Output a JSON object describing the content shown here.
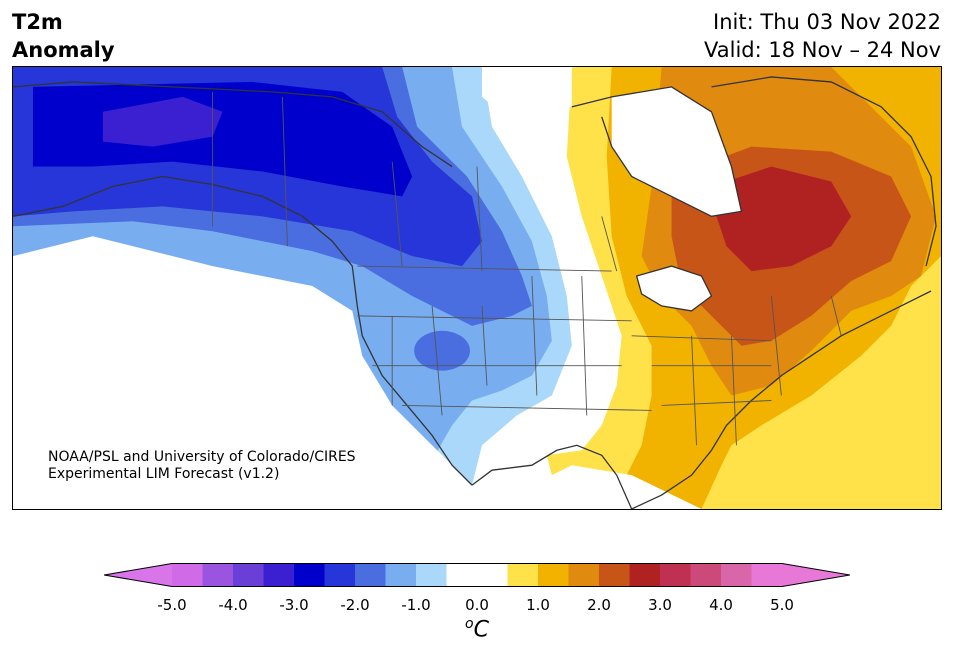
{
  "title_left": {
    "line1": "T2m",
    "line2": "Anomaly"
  },
  "title_right": {
    "init": "Init: Thu 03 Nov 2022",
    "valid": "Valid: 18 Nov – 24 Nov"
  },
  "credit": {
    "line1": "NOAA/PSL and University of Colorado/CIRES",
    "line2": "Experimental LIM Forecast (v1.2)"
  },
  "colorbar": {
    "colors": [
      "#d06ae6",
      "#9b54e0",
      "#6a3fd8",
      "#3a20d0",
      "#0000cc",
      "#2636d8",
      "#4a6ee0",
      "#78aef0",
      "#aad8fa",
      "#ffffff",
      "#ffffff",
      "#ffe14a",
      "#f2b200",
      "#e08a10",
      "#c85518",
      "#b02222",
      "#c03050",
      "#cc4a7a",
      "#d866a8",
      "#e878d8"
    ],
    "under_color": "#d875e8",
    "over_color": "#e878d8",
    "tick_labels": [
      "-5.0",
      "-4.0",
      "-3.0",
      "-2.0",
      "-1.0",
      "0.0",
      "1.0",
      "2.0",
      "3.0",
      "4.0",
      "5.0"
    ],
    "unit_prefix": "o",
    "unit_main": "C"
  }
}
